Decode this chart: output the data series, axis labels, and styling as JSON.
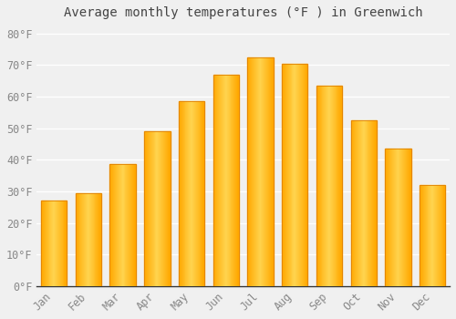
{
  "title": "Average monthly temperatures (°F ) in Greenwich",
  "months": [
    "Jan",
    "Feb",
    "Mar",
    "Apr",
    "May",
    "Jun",
    "Jul",
    "Aug",
    "Sep",
    "Oct",
    "Nov",
    "Dec"
  ],
  "values": [
    27,
    29.5,
    38.5,
    49,
    58.5,
    67,
    72.5,
    70.5,
    63.5,
    52.5,
    43.5,
    32
  ],
  "bar_color_light": "#FFD060",
  "bar_color_main": "#FFA800",
  "bar_color_edge": "#E08000",
  "background_color": "#F0F0F0",
  "grid_color": "#FFFFFF",
  "ytick_labels": [
    "0°F",
    "10°F",
    "20°F",
    "30°F",
    "40°F",
    "50°F",
    "60°F",
    "70°F",
    "80°F"
  ],
  "ytick_values": [
    0,
    10,
    20,
    30,
    40,
    50,
    60,
    70,
    80
  ],
  "ylim": [
    0,
    83
  ],
  "title_fontsize": 10,
  "tick_fontsize": 8.5,
  "tick_color": "#888888",
  "title_color": "#444444",
  "font_family": "monospace"
}
